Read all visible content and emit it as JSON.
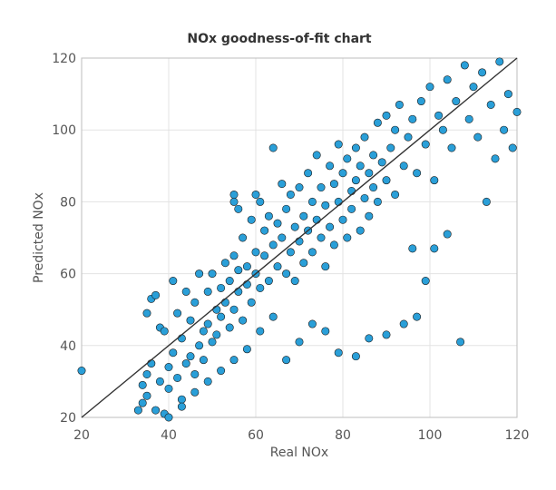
{
  "chart_data": {
    "type": "scatter",
    "title": "NOx goodness-of-fit chart",
    "xlabel": "Real NOx",
    "ylabel": "Predicted NOx",
    "xlim": [
      20,
      120
    ],
    "ylim": [
      20,
      120
    ],
    "xticks": [
      "20",
      "40",
      "60",
      "80",
      "100",
      "120"
    ],
    "yticks": [
      "20",
      "40",
      "60",
      "80",
      "100",
      "120"
    ],
    "grid": true,
    "legend": "none",
    "reference_line": {
      "from": [
        20,
        20
      ],
      "to": [
        120,
        120
      ],
      "color": "#333333"
    },
    "point_color": "#2a9fd8",
    "series": [
      {
        "points": [
          [
            20,
            33
          ],
          [
            33,
            22
          ],
          [
            34,
            24
          ],
          [
            35,
            26
          ],
          [
            34,
            29
          ],
          [
            35,
            32
          ],
          [
            36,
            35
          ],
          [
            35,
            49
          ],
          [
            36,
            53
          ],
          [
            37,
            54
          ],
          [
            38,
            45
          ],
          [
            39,
            44
          ],
          [
            38,
            30
          ],
          [
            37,
            22
          ],
          [
            39,
            21
          ],
          [
            40,
            28
          ],
          [
            40,
            34
          ],
          [
            41,
            38
          ],
          [
            41,
            58
          ],
          [
            42,
            49
          ],
          [
            42,
            31
          ],
          [
            43,
            25
          ],
          [
            43,
            42
          ],
          [
            44,
            35
          ],
          [
            44,
            55
          ],
          [
            45,
            37
          ],
          [
            45,
            47
          ],
          [
            46,
            32
          ],
          [
            46,
            52
          ],
          [
            47,
            40
          ],
          [
            47,
            60
          ],
          [
            48,
            44
          ],
          [
            48,
            36
          ],
          [
            49,
            55
          ],
          [
            49,
            46
          ],
          [
            50,
            41
          ],
          [
            50,
            60
          ],
          [
            51,
            50
          ],
          [
            51,
            43
          ],
          [
            52,
            56
          ],
          [
            52,
            48
          ],
          [
            53,
            63
          ],
          [
            53,
            52
          ],
          [
            54,
            45
          ],
          [
            54,
            58
          ],
          [
            55,
            65
          ],
          [
            55,
            50
          ],
          [
            55,
            82
          ],
          [
            56,
            61
          ],
          [
            56,
            55
          ],
          [
            57,
            70
          ],
          [
            57,
            47
          ],
          [
            58,
            62
          ],
          [
            58,
            57
          ],
          [
            59,
            75
          ],
          [
            59,
            52
          ],
          [
            60,
            66
          ],
          [
            60,
            60
          ],
          [
            61,
            80
          ],
          [
            61,
            56
          ],
          [
            62,
            72
          ],
          [
            62,
            65
          ],
          [
            63,
            58
          ],
          [
            63,
            76
          ],
          [
            64,
            95
          ],
          [
            64,
            68
          ],
          [
            65,
            62
          ],
          [
            65,
            74
          ],
          [
            66,
            85
          ],
          [
            66,
            70
          ],
          [
            67,
            60
          ],
          [
            67,
            78
          ],
          [
            68,
            66
          ],
          [
            68,
            82
          ],
          [
            69,
            73
          ],
          [
            69,
            58
          ],
          [
            70,
            84
          ],
          [
            70,
            69
          ],
          [
            71,
            76
          ],
          [
            71,
            63
          ],
          [
            72,
            88
          ],
          [
            72,
            72
          ],
          [
            73,
            66
          ],
          [
            73,
            80
          ],
          [
            74,
            93
          ],
          [
            74,
            75
          ],
          [
            75,
            70
          ],
          [
            75,
            84
          ],
          [
            76,
            62
          ],
          [
            76,
            79
          ],
          [
            77,
            90
          ],
          [
            77,
            73
          ],
          [
            78,
            85
          ],
          [
            78,
            68
          ],
          [
            79,
            96
          ],
          [
            79,
            80
          ],
          [
            80,
            75
          ],
          [
            80,
            88
          ],
          [
            81,
            70
          ],
          [
            81,
            92
          ],
          [
            82,
            83
          ],
          [
            82,
            78
          ],
          [
            83,
            95
          ],
          [
            83,
            86
          ],
          [
            84,
            72
          ],
          [
            84,
            90
          ],
          [
            85,
            98
          ],
          [
            85,
            81
          ],
          [
            86,
            88
          ],
          [
            86,
            76
          ],
          [
            87,
            93
          ],
          [
            87,
            84
          ],
          [
            88,
            102
          ],
          [
            88,
            80
          ],
          [
            89,
            91
          ],
          [
            90,
            86
          ],
          [
            90,
            104
          ],
          [
            91,
            95
          ],
          [
            92,
            82
          ],
          [
            92,
            100
          ],
          [
            93,
            107
          ],
          [
            94,
            90
          ],
          [
            95,
            98
          ],
          [
            96,
            103
          ],
          [
            97,
            88
          ],
          [
            98,
            108
          ],
          [
            99,
            96
          ],
          [
            100,
            112
          ],
          [
            101,
            86
          ],
          [
            102,
            104
          ],
          [
            103,
            100
          ],
          [
            104,
            114
          ],
          [
            105,
            95
          ],
          [
            106,
            108
          ],
          [
            107,
            41
          ],
          [
            108,
            118
          ],
          [
            109,
            103
          ],
          [
            110,
            112
          ],
          [
            111,
            98
          ],
          [
            112,
            116
          ],
          [
            113,
            80
          ],
          [
            114,
            107
          ],
          [
            115,
            92
          ],
          [
            116,
            119
          ],
          [
            117,
            100
          ],
          [
            118,
            110
          ],
          [
            119,
            95
          ],
          [
            120,
            105
          ],
          [
            96,
            67
          ],
          [
            101,
            67
          ],
          [
            104,
            71
          ],
          [
            99,
            58
          ],
          [
            97,
            48
          ],
          [
            94,
            46
          ],
          [
            90,
            43
          ],
          [
            86,
            42
          ],
          [
            83,
            37
          ],
          [
            79,
            38
          ],
          [
            76,
            44
          ],
          [
            73,
            46
          ],
          [
            70,
            41
          ],
          [
            67,
            36
          ],
          [
            64,
            48
          ],
          [
            61,
            44
          ],
          [
            58,
            39
          ],
          [
            55,
            36
          ],
          [
            52,
            33
          ],
          [
            49,
            30
          ],
          [
            46,
            27
          ],
          [
            43,
            23
          ],
          [
            40,
            20
          ],
          [
            55,
            80
          ],
          [
            56,
            78
          ],
          [
            60,
            82
          ]
        ]
      }
    ]
  }
}
